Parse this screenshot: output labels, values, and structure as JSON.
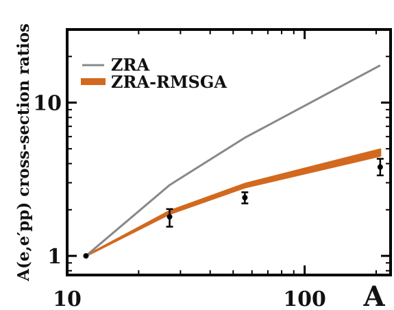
{
  "chart_data": {
    "type": "line",
    "xlabel": "A",
    "ylabel": "A(e,e′pp) cross-section ratios",
    "x_scale": "log",
    "y_scale": "log",
    "xlim": [
      10,
      230
    ],
    "ylim": [
      0.75,
      30
    ],
    "x_ticks": [
      {
        "value": 10,
        "label": "10"
      },
      {
        "value": 100,
        "label": "100"
      }
    ],
    "y_ticks": [
      {
        "value": 1,
        "label": "1"
      },
      {
        "value": 10,
        "label": "10"
      }
    ],
    "grid": false,
    "legend_position": "top-left",
    "colors": {
      "zra": "#888888",
      "band": "#d2691e",
      "data": "#000000",
      "axes": "#000000"
    },
    "series": [
      {
        "name": "ZRA",
        "kind": "line",
        "x": [
          12,
          27,
          56,
          208
        ],
        "y": [
          1.0,
          2.9,
          5.9,
          17.5
        ]
      },
      {
        "name": "ZRA-RMSGA",
        "kind": "band",
        "x": [
          12,
          27,
          56,
          208
        ],
        "y_low": [
          1.0,
          1.88,
          2.8,
          4.5
        ],
        "y_high": [
          1.0,
          1.96,
          2.95,
          4.95
        ]
      },
      {
        "name": "",
        "kind": "points",
        "x": [
          12,
          27,
          56,
          208
        ],
        "y": [
          1.0,
          1.8,
          2.4,
          3.8
        ],
        "err_low": [
          0,
          0.25,
          0.2,
          0.45
        ],
        "err_high": [
          0,
          0.22,
          0.2,
          0.5
        ]
      }
    ]
  }
}
